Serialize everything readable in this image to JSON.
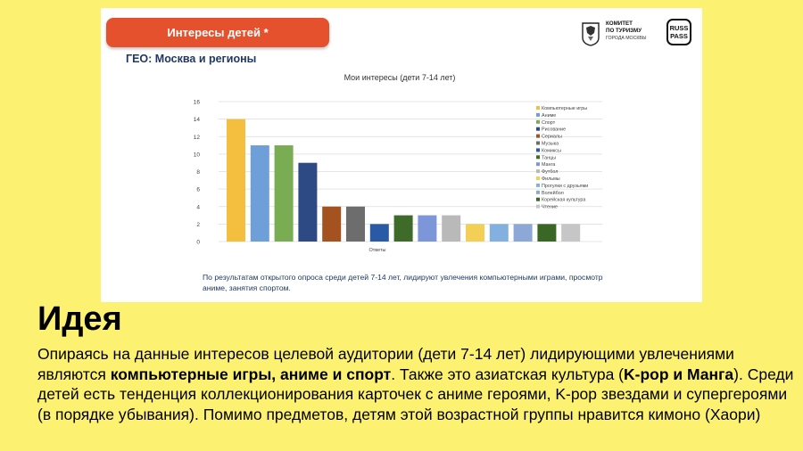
{
  "slide": {
    "header_title": "Интересы детей *",
    "geo_label": "ГЕО: Москва и регионы",
    "logos": {
      "committee_line1": "КОМИТЕТ",
      "committee_line2": "ПО ТУРИЗМУ",
      "committee_line3": "ГОРОДА МОСКВЫ",
      "russpass_line1": "RUSS",
      "russpass_line2": "PASS",
      "seal_icon": "moscow-coat-of-arms-icon"
    },
    "caption": "По результатам открытого опроса среди детей 7-14 лет, лидируют увлечения компьютерными играми, просмотр аниме, занятия спортом."
  },
  "chart_data": {
    "type": "bar",
    "title": "Мои интересы (дети 7-14 лет)",
    "xlabel": "Ответы",
    "ylabel": "",
    "ylim": [
      0,
      16
    ],
    "yticks": [
      "0",
      "2",
      "4",
      "6",
      "8",
      "10",
      "12",
      "14",
      "16"
    ],
    "grid": true,
    "legend_position": "right",
    "series": [
      {
        "name": "Компьютерные игры",
        "value": 14,
        "color": "#f4bf3e"
      },
      {
        "name": "Аниме",
        "value": 11,
        "color": "#6e9fd9"
      },
      {
        "name": "Спорт",
        "value": 11,
        "color": "#79ac53"
      },
      {
        "name": "Рисование",
        "value": 9,
        "color": "#2e4a84"
      },
      {
        "name": "Сериалы",
        "value": 4,
        "color": "#a4521f"
      },
      {
        "name": "Музыка",
        "value": 4,
        "color": "#6d6d6d"
      },
      {
        "name": "Комиксы",
        "value": 2,
        "color": "#2a5aa5"
      },
      {
        "name": "Танцы",
        "value": 3,
        "color": "#3e6b2a"
      },
      {
        "name": "Манга",
        "value": 3,
        "color": "#7d96da"
      },
      {
        "name": "Футбол",
        "value": 3,
        "color": "#b9b9b9"
      },
      {
        "name": "Фильмы",
        "value": 2,
        "color": "#f4cf56"
      },
      {
        "name": "Прогулки с друзьями",
        "value": 2,
        "color": "#84b0df"
      },
      {
        "name": "Волейбол",
        "value": 2,
        "color": "#8da7d6"
      },
      {
        "name": "Корейская культура",
        "value": 2,
        "color": "#3b6726"
      },
      {
        "name": "Чтение",
        "value": 2,
        "color": "#c6c6c6"
      }
    ]
  },
  "idea": {
    "title": "Идея",
    "p1": "Опираясь на данные интересов целевой аудитории (дети 7-14 лет) лидирующими увлечениями являются ",
    "b1": "компьютерные игры, аниме и спорт",
    "p2": ". Также это азиатская культура (",
    "b2": "K-pop и Манга",
    "p3": "). Среди детей есть тенденция коллекционирования карточек с аниме героями, K-pop звездами и супергероями (в порядке убывания). Помимо предметов, детям этой возрастной группы нравится кимоно (Хаори)"
  }
}
